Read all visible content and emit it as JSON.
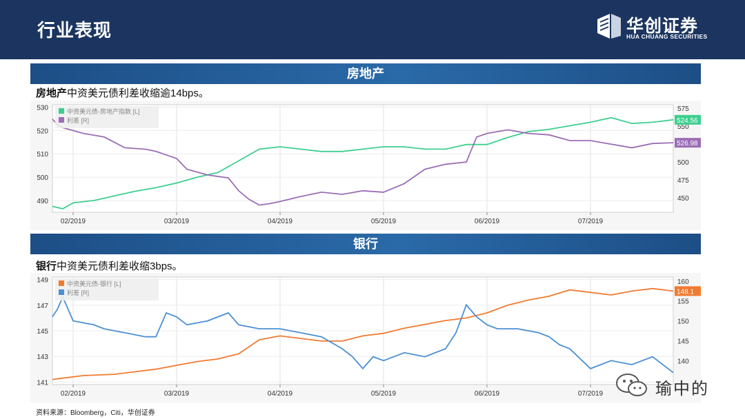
{
  "header": {
    "title": "行业表现"
  },
  "logo": {
    "cn": "华创证券",
    "en": "HUA CHUANG SECURITIES"
  },
  "sections": [
    {
      "band_title": "房地产",
      "subtitle_bold": "房地产",
      "subtitle_rest": "中资美元债利差收缩逾14bps。"
    },
    {
      "band_title": "银行",
      "subtitle_bold": "银行",
      "subtitle_rest": "中资美元债利差收缩3bps。"
    }
  ],
  "source": "资料来源：Bloomberg，Citi，华创证券",
  "watermark": "瑜中的",
  "chart_data": [
    {
      "type": "line",
      "title": "房地产",
      "x_labels": [
        "02/2019",
        "03/2019",
        "04/2019",
        "05/2019",
        "06/2019",
        "07/2019"
      ],
      "x_label_pos": [
        0.2,
        1.2,
        2.2,
        3.2,
        4.2,
        5.2
      ],
      "xlim": [
        0,
        6
      ],
      "left_axis": {
        "ylim": [
          485,
          531
        ],
        "ticks": [
          490,
          500,
          510,
          520,
          530
        ]
      },
      "right_axis": {
        "ylim": [
          430,
          580
        ],
        "ticks": [
          450,
          475,
          500,
          525,
          550,
          575
        ]
      },
      "series": [
        {
          "name": "中资美元债-房地产指数 [L]",
          "axis": "left",
          "color": "#3ccf8e",
          "end_label": "524.56",
          "x": [
            0.0,
            0.1,
            0.2,
            0.4,
            0.6,
            0.8,
            1.0,
            1.2,
            1.4,
            1.6,
            1.8,
            2.0,
            2.2,
            2.4,
            2.6,
            2.8,
            3.0,
            3.2,
            3.4,
            3.6,
            3.8,
            4.0,
            4.2,
            4.4,
            4.6,
            4.8,
            5.0,
            5.2,
            5.4,
            5.6,
            5.8,
            6.0
          ],
          "values": [
            487.5,
            486.5,
            489,
            490,
            492,
            494,
            495.5,
            497.5,
            500,
            502,
            507,
            512,
            513,
            512,
            511,
            511,
            512,
            513,
            513,
            512,
            512,
            514,
            514,
            517,
            519.5,
            520.5,
            522,
            523.5,
            525.5,
            523,
            523.5,
            524.56
          ]
        },
        {
          "name": "利差 [R]",
          "axis": "right",
          "color": "#9a6db5",
          "end_label": "526.98",
          "x": [
            0.0,
            0.05,
            0.1,
            0.3,
            0.5,
            0.7,
            0.9,
            1.0,
            1.1,
            1.2,
            1.3,
            1.5,
            1.7,
            1.8,
            1.9,
            2.0,
            2.1,
            2.2,
            2.4,
            2.6,
            2.8,
            3.0,
            3.2,
            3.4,
            3.6,
            3.8,
            4.0,
            4.1,
            4.2,
            4.4,
            4.6,
            4.8,
            5.0,
            5.2,
            5.4,
            5.6,
            5.8,
            6.0
          ],
          "values": [
            560,
            552,
            548,
            540,
            535,
            520,
            518,
            515,
            510,
            505,
            490,
            482,
            478,
            460,
            448,
            440,
            442,
            445,
            452,
            458,
            455,
            460,
            458,
            470,
            490,
            497,
            500,
            535,
            540,
            545,
            540,
            538,
            530,
            530,
            525,
            520,
            526,
            526.98
          ]
        }
      ]
    },
    {
      "type": "line",
      "title": "银行",
      "x_labels": [
        "02/2019",
        "03/2019",
        "04/2019",
        "05/2019",
        "06/2019",
        "07/2019"
      ],
      "x_label_pos": [
        0.2,
        1.2,
        2.2,
        3.2,
        4.2,
        5.2
      ],
      "xlim": [
        0,
        6
      ],
      "left_axis": {
        "ylim": [
          140.8,
          149.2
        ],
        "ticks": [
          141,
          143,
          145,
          147,
          149
        ]
      },
      "right_axis": {
        "ylim": [
          134,
          161
        ],
        "ticks": [
          140,
          145,
          150,
          155,
          160
        ]
      },
      "series": [
        {
          "name": "中资美元债-银行 [L]",
          "axis": "left",
          "color": "#f07a30",
          "end_label": "148.1",
          "x": [
            0.0,
            0.1,
            0.3,
            0.6,
            0.8,
            1.0,
            1.2,
            1.4,
            1.6,
            1.8,
            2.0,
            2.2,
            2.4,
            2.6,
            2.8,
            3.0,
            3.2,
            3.4,
            3.6,
            3.8,
            4.0,
            4.2,
            4.4,
            4.6,
            4.8,
            5.0,
            5.2,
            5.4,
            5.6,
            5.8,
            6.0
          ],
          "values": [
            141.2,
            141.3,
            141.5,
            141.6,
            141.8,
            142,
            142.3,
            142.6,
            142.8,
            143.2,
            144.3,
            144.6,
            144.4,
            144.2,
            144.2,
            144.6,
            144.8,
            145.2,
            145.5,
            145.8,
            146,
            146.4,
            147,
            147.4,
            147.7,
            148.2,
            148,
            147.8,
            148.1,
            148.3,
            148.1
          ]
        },
        {
          "name": "利差 [R]",
          "axis": "right",
          "color": "#4a8fd4",
          "end_label": "",
          "x": [
            0.0,
            0.05,
            0.1,
            0.2,
            0.4,
            0.5,
            0.7,
            0.9,
            1.0,
            1.1,
            1.2,
            1.3,
            1.5,
            1.7,
            1.8,
            2.0,
            2.2,
            2.4,
            2.6,
            2.8,
            2.9,
            3.0,
            3.1,
            3.2,
            3.4,
            3.6,
            3.8,
            3.9,
            4.0,
            4.1,
            4.2,
            4.3,
            4.5,
            4.7,
            4.8,
            4.9,
            5.0,
            5.2,
            5.4,
            5.6,
            5.8,
            6.0
          ],
          "values": [
            151,
            153,
            156,
            150,
            149,
            148,
            147,
            146,
            146,
            152,
            151,
            149,
            150,
            152,
            149,
            148,
            148,
            147,
            146,
            143,
            141,
            138,
            141,
            140,
            142,
            141,
            143,
            147,
            154,
            151,
            149,
            148,
            148,
            147,
            146,
            144,
            143,
            138,
            140,
            139,
            141,
            137
          ]
        }
      ]
    }
  ]
}
